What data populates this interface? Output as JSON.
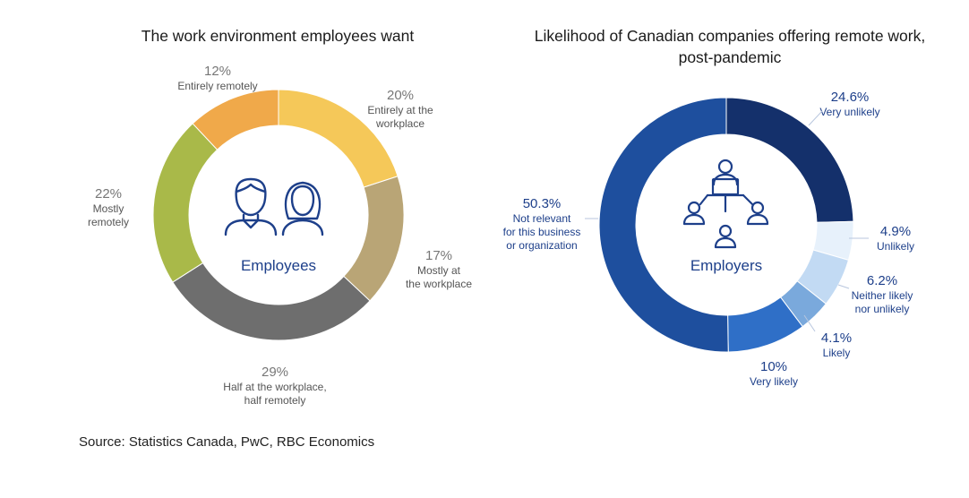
{
  "charts": {
    "left_title": "The work environment employees want",
    "right_title": "Likelihood of Canadian companies offering remote work, post-pandemic",
    "left_center_label": "Employees",
    "right_center_label": "Employers"
  },
  "source": "Source: Statistics Canada, PwC, RBC Economics",
  "chart_data": [
    {
      "type": "pie",
      "title": "The work environment employees want",
      "center_label": "Employees",
      "slices": [
        {
          "label": "Entirely at the workplace",
          "value": 20,
          "value_text": "20%",
          "color": "#f5c859"
        },
        {
          "label": "Mostly at the workplace",
          "value": 17,
          "value_text": "17%",
          "color": "#b9a576"
        },
        {
          "label": "Half at the workplace, half remotely",
          "value": 29,
          "value_text": "29%",
          "color": "#6e6e6e"
        },
        {
          "label": "Mostly remotely",
          "value": 22,
          "value_text": "22%",
          "color": "#a9b949"
        },
        {
          "label": "Entirely remotely",
          "value": 12,
          "value_text": "12%",
          "color": "#f0a94a"
        }
      ]
    },
    {
      "type": "pie",
      "title": "Likelihood of Canadian companies offering remote work, post-pandemic",
      "center_label": "Employers",
      "slices": [
        {
          "label": "Very unlikely",
          "value": 24.6,
          "value_text": "24.6%",
          "color": "#14306b"
        },
        {
          "label": "Unlikely",
          "value": 4.9,
          "value_text": "4.9%",
          "color": "#e7f1fb"
        },
        {
          "label": "Neither likely nor unlikely",
          "value": 6.2,
          "value_text": "6.2%",
          "color": "#c2daf3"
        },
        {
          "label": "Likely",
          "value": 4.1,
          "value_text": "4.1%",
          "color": "#7aa9dc"
        },
        {
          "label": "Very likely",
          "value": 10,
          "value_text": "10%",
          "color": "#2f6fc7"
        },
        {
          "label": "Not relevant for this business or organization",
          "value": 50.3,
          "value_text": "50.3%",
          "color": "#1e4f9e"
        }
      ]
    }
  ]
}
